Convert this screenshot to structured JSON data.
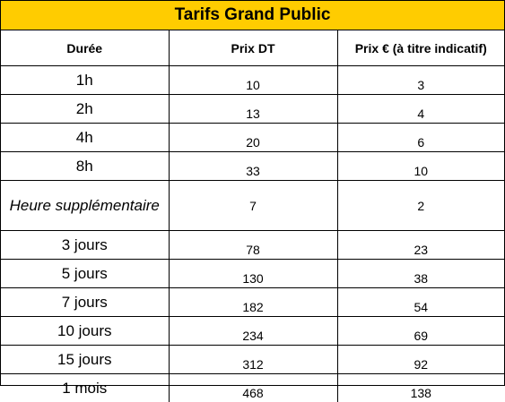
{
  "title": "Tarifs Grand Public",
  "headers": {
    "duration": "Durée",
    "price_dt": "Prix DT",
    "price_eur": "Prix € (à titre indicatif)"
  },
  "rows": [
    {
      "duration": "1h",
      "price_dt": "10",
      "price_eur": "3"
    },
    {
      "duration": "2h",
      "price_dt": "13",
      "price_eur": "4"
    },
    {
      "duration": "4h",
      "price_dt": "20",
      "price_eur": "6"
    },
    {
      "duration": "8h",
      "price_dt": "33",
      "price_eur": "10"
    },
    {
      "duration": "Heure supplémentaire",
      "price_dt": "7",
      "price_eur": "2"
    },
    {
      "duration": "3 jours",
      "price_dt": "78",
      "price_eur": "23"
    },
    {
      "duration": "5 jours",
      "price_dt": "130",
      "price_eur": "38"
    },
    {
      "duration": "7 jours",
      "price_dt": "182",
      "price_eur": "54"
    },
    {
      "duration": "10 jours",
      "price_dt": "234",
      "price_eur": "69"
    },
    {
      "duration": "15 jours",
      "price_dt": "312",
      "price_eur": "92"
    },
    {
      "duration": "1 mois",
      "price_dt": "468",
      "price_eur": "138"
    }
  ],
  "colors": {
    "title_background": "#ffcc00",
    "border": "#000000"
  }
}
